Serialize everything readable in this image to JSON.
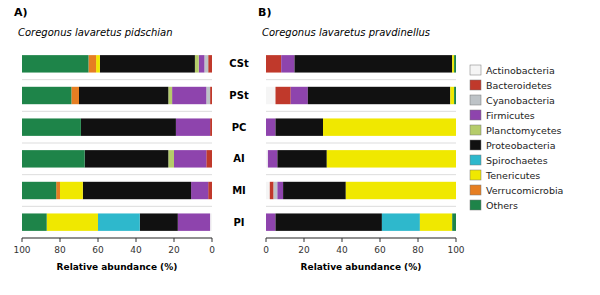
{
  "chart_data": [
    {
      "type": "bar",
      "orientation": "horizontal",
      "stacked": true,
      "grid": true,
      "legend": "right",
      "title": "Coregonus lavaretus pidschian",
      "annotations": [
        "A)"
      ],
      "x_label": "Relative abundance (%)",
      "categories": [
        "PI",
        "MI",
        "AI",
        "PC",
        "PSt",
        "CSt"
      ],
      "xlim": [
        100,
        0
      ],
      "xticks": [
        100,
        80,
        60,
        40,
        20,
        0
      ],
      "series": [
        {
          "name": "Actinobacteria",
          "color": "#f5f5f5",
          "values": [
            1,
            0,
            0,
            0,
            0,
            0
          ]
        },
        {
          "name": "Bacteroidetes",
          "color": "#c0392b",
          "values": [
            0,
            2,
            3,
            1,
            1,
            2
          ]
        },
        {
          "name": "Cyanobacteria",
          "color": "#bdc3c7",
          "values": [
            0,
            0,
            0,
            0,
            2,
            2
          ]
        },
        {
          "name": "Firmicutes",
          "color": "#8e44ad",
          "values": [
            17,
            9,
            17,
            18,
            18,
            3
          ]
        },
        {
          "name": "Planctomycetes",
          "color": "#b5cc6a",
          "values": [
            0,
            0,
            3,
            0,
            2,
            2
          ]
        },
        {
          "name": "Proteobacteria",
          "color": "#111111",
          "values": [
            20,
            57,
            44,
            50,
            47,
            50
          ]
        },
        {
          "name": "Spirochaetes",
          "color": "#2eb8cc",
          "values": [
            22,
            0,
            0,
            0,
            0,
            0
          ]
        },
        {
          "name": "Tenericutes",
          "color": "#f0e800",
          "values": [
            27,
            12,
            0,
            0,
            0,
            2
          ]
        },
        {
          "name": "Verrucomicrobia",
          "color": "#e67e22",
          "values": [
            0,
            2,
            0,
            0,
            4,
            4
          ]
        },
        {
          "name": "Others",
          "color": "#1e8449",
          "values": [
            13,
            18,
            33,
            31,
            26,
            35
          ]
        }
      ]
    },
    {
      "type": "bar",
      "orientation": "horizontal",
      "stacked": true,
      "grid": true,
      "title": "Coregonus lavaretus pravdinellus",
      "annotations": [
        "B)"
      ],
      "x_label": "Relative abundance (%)",
      "categories": [
        "PI",
        "MI",
        "AI",
        "PC",
        "PSt",
        "CSt"
      ],
      "xlim": [
        0,
        100
      ],
      "xticks": [
        0,
        20,
        40,
        60,
        80,
        100
      ],
      "series": [
        {
          "name": "Actinobacteria",
          "color": "#f5f5f5",
          "values": [
            0,
            2,
            1,
            0,
            5,
            0
          ]
        },
        {
          "name": "Bacteroidetes",
          "color": "#c0392b",
          "values": [
            0,
            2,
            0,
            0,
            8,
            8
          ]
        },
        {
          "name": "Cyanobacteria",
          "color": "#bdc3c7",
          "values": [
            0,
            2,
            0,
            0,
            0,
            0
          ]
        },
        {
          "name": "Firmicutes",
          "color": "#8e44ad",
          "values": [
            5,
            3,
            5,
            5,
            9,
            7
          ]
        },
        {
          "name": "Planctomycetes",
          "color": "#b5cc6a",
          "values": [
            0,
            0,
            0,
            0,
            0,
            0
          ]
        },
        {
          "name": "Proteobacteria",
          "color": "#111111",
          "values": [
            56,
            33,
            26,
            25,
            75,
            83
          ]
        },
        {
          "name": "Spirochaetes",
          "color": "#2eb8cc",
          "values": [
            20,
            0,
            0,
            0,
            0,
            0
          ]
        },
        {
          "name": "Tenericutes",
          "color": "#f0e800",
          "values": [
            17,
            58,
            68,
            70,
            2,
            1
          ]
        },
        {
          "name": "Verrucomicrobia",
          "color": "#e67e22",
          "values": [
            0,
            0,
            0,
            0,
            0,
            0
          ]
        },
        {
          "name": "Others",
          "color": "#1e8449",
          "values": [
            2,
            0,
            0,
            0,
            1,
            1
          ]
        }
      ]
    }
  ]
}
